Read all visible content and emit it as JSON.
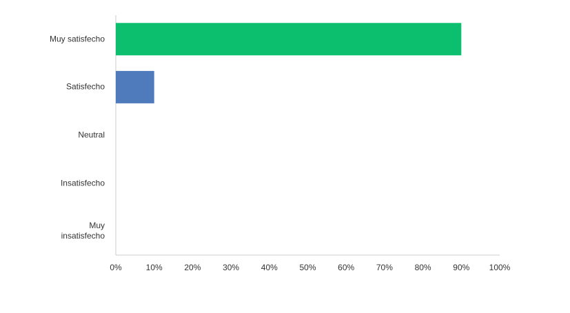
{
  "chart_data": {
    "type": "hbar",
    "categories": [
      "Muy satisfecho",
      "Satisfecho",
      "Neutral",
      "Insatisfecho",
      "Muy insatisfecho"
    ],
    "values": [
      90,
      10,
      0,
      0,
      0
    ],
    "colors": [
      "#0bbf6f",
      "#4f7bbd",
      "#4f7bbd",
      "#4f7bbd",
      "#4f7bbd"
    ],
    "xlim": [
      0,
      100
    ],
    "xticks": [
      {
        "value": 0,
        "label": "0%"
      },
      {
        "value": 10,
        "label": "10%"
      },
      {
        "value": 20,
        "label": "20%"
      },
      {
        "value": 30,
        "label": "30%"
      },
      {
        "value": 40,
        "label": "40%"
      },
      {
        "value": 50,
        "label": "50%"
      },
      {
        "value": 60,
        "label": "60%"
      },
      {
        "value": 70,
        "label": "70%"
      },
      {
        "value": 80,
        "label": "80%"
      },
      {
        "value": 90,
        "label": "90%"
      },
      {
        "value": 100,
        "label": "100%"
      }
    ],
    "grid": false
  }
}
